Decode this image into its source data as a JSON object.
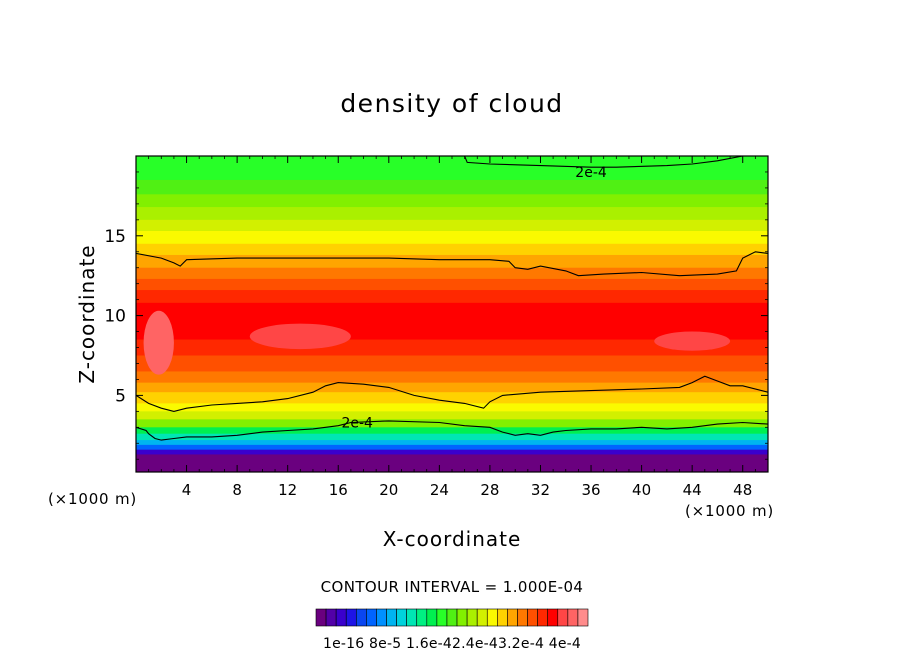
{
  "chart_data": {
    "type": "heatmap",
    "title": "density of cloud",
    "xlabel": "X-coordinate",
    "ylabel": "Z-coordinate",
    "x_unit_left": "(×1000 m)",
    "x_unit_right": "(×1000 m)",
    "xlim": [
      0,
      50
    ],
    "ylim": [
      0.2,
      20
    ],
    "x_ticks": [
      4,
      8,
      12,
      16,
      20,
      24,
      28,
      32,
      36,
      40,
      44,
      48
    ],
    "x_tick_labels": [
      "4",
      "8",
      "12",
      "16",
      "20",
      "24",
      "28",
      "32",
      "36",
      "40",
      "44",
      "48"
    ],
    "y_ticks": [
      5,
      10,
      15
    ],
    "y_tick_labels": [
      "5",
      "10",
      "15"
    ],
    "contour_interval_text": "CONTOUR INTERVAL = 1.000E-04",
    "contour_label": "2e-4",
    "contour_labels": [
      {
        "text": "2e-4",
        "x": 36,
        "z": 19.0
      },
      {
        "text": "2e-4",
        "x": 17.5,
        "z": 3.3
      }
    ],
    "colorbar": {
      "colors": [
        "#6a007f",
        "#5200a8",
        "#3a00cc",
        "#1e14e6",
        "#0a46f0",
        "#0064ff",
        "#0090ff",
        "#00b4f0",
        "#00d2dc",
        "#00e6b4",
        "#00f082",
        "#00f050",
        "#28ff28",
        "#50f014",
        "#82f000",
        "#aaf000",
        "#d2f000",
        "#fafa00",
        "#ffd200",
        "#ffa500",
        "#ff7800",
        "#ff5000",
        "#ff2800",
        "#ff0000",
        "#ff4646",
        "#ff6464",
        "#ff8c8c"
      ],
      "tick_labels": [
        "1e-16",
        "8e-5",
        "1.6e-4",
        "2.4e-4",
        "3.2e-4",
        "4e-4"
      ],
      "label_text": "1e-16 8e-5 1.6e-42.4e-43.2e-4 4e-4"
    },
    "bands": [
      {
        "color": "#6a007f",
        "z_top": 1.3
      },
      {
        "color": "#3a00cc",
        "z_top": 1.6
      },
      {
        "color": "#0064ff",
        "z_top": 1.9
      },
      {
        "color": "#00b4f0",
        "z_top": 2.2
      },
      {
        "color": "#00e6b4",
        "z_top": 2.6
      },
      {
        "color": "#00f050",
        "z_top": 3.0
      },
      {
        "color": "#82f000",
        "z_top": 3.5
      },
      {
        "color": "#d2f000",
        "z_top": 4.0
      },
      {
        "color": "#fafa00",
        "z_top": 4.5
      },
      {
        "color": "#ffd200",
        "z_top": 5.2
      },
      {
        "color": "#ffa500",
        "z_top": 5.8
      },
      {
        "color": "#ff7800",
        "z_top": 6.5
      },
      {
        "color": "#ff5000",
        "z_top": 7.5
      },
      {
        "color": "#ff2800",
        "z_top": 8.5
      },
      {
        "color": "#ff0000",
        "z_top": 10.8
      },
      {
        "color": "#ff2800",
        "z_top": 11.6
      },
      {
        "color": "#ff5000",
        "z_top": 12.3
      },
      {
        "color": "#ff7800",
        "z_top": 13.0
      },
      {
        "color": "#ffa500",
        "z_top": 13.8
      },
      {
        "color": "#ffd200",
        "z_top": 14.5
      },
      {
        "color": "#fafa00",
        "z_top": 15.3
      },
      {
        "color": "#d2f000",
        "z_top": 16.0
      },
      {
        "color": "#aaf000",
        "z_top": 16.8
      },
      {
        "color": "#82f000",
        "z_top": 17.6
      },
      {
        "color": "#50f014",
        "z_top": 18.5
      },
      {
        "color": "#28ff28",
        "z_top": 20.0
      }
    ],
    "highlights": [
      {
        "color": "#ff6464",
        "x": 1.8,
        "z": 8.3,
        "rx": 1.2,
        "rz": 2.0
      },
      {
        "color": "#ff4646",
        "x": 13,
        "z": 8.7,
        "rx": 4,
        "rz": 0.8
      },
      {
        "color": "#ff4646",
        "x": 44,
        "z": 8.4,
        "rx": 3,
        "rz": 0.6
      }
    ],
    "contours": [
      {
        "label": "upper",
        "points": [
          [
            0,
            13.9
          ],
          [
            2,
            13.6
          ],
          [
            3,
            13.3
          ],
          [
            3.5,
            13.1
          ],
          [
            4,
            13.5
          ],
          [
            8,
            13.6
          ],
          [
            12,
            13.6
          ],
          [
            16,
            13.6
          ],
          [
            20,
            13.6
          ],
          [
            24,
            13.5
          ],
          [
            28,
            13.5
          ],
          [
            29.5,
            13.4
          ],
          [
            30,
            13.0
          ],
          [
            31,
            12.9
          ],
          [
            32,
            13.1
          ],
          [
            34,
            12.8
          ],
          [
            35,
            12.5
          ],
          [
            37,
            12.6
          ],
          [
            40,
            12.7
          ],
          [
            43,
            12.5
          ],
          [
            46,
            12.6
          ],
          [
            47.5,
            12.8
          ],
          [
            48,
            13.6
          ],
          [
            49,
            14.0
          ],
          [
            50,
            13.9
          ]
        ]
      },
      {
        "label": "middle",
        "points": [
          [
            0,
            5.0
          ],
          [
            1,
            4.5
          ],
          [
            2,
            4.2
          ],
          [
            3,
            4.0
          ],
          [
            4,
            4.2
          ],
          [
            6,
            4.4
          ],
          [
            8,
            4.5
          ],
          [
            10,
            4.6
          ],
          [
            12,
            4.8
          ],
          [
            14,
            5.2
          ],
          [
            15,
            5.6
          ],
          [
            16,
            5.8
          ],
          [
            18,
            5.7
          ],
          [
            20,
            5.5
          ],
          [
            22,
            5.0
          ],
          [
            24,
            4.7
          ],
          [
            26,
            4.5
          ],
          [
            27.5,
            4.2
          ],
          [
            28,
            4.6
          ],
          [
            29,
            5.0
          ],
          [
            32,
            5.2
          ],
          [
            36,
            5.3
          ],
          [
            40,
            5.4
          ],
          [
            43,
            5.5
          ],
          [
            44,
            5.8
          ],
          [
            45,
            6.2
          ],
          [
            46,
            5.9
          ],
          [
            47,
            5.6
          ],
          [
            48,
            5.6
          ],
          [
            50,
            5.2
          ]
        ]
      },
      {
        "label": "2e-4-lower",
        "points": [
          [
            0,
            3.0
          ],
          [
            0.8,
            2.8
          ],
          [
            1,
            2.6
          ],
          [
            1.5,
            2.3
          ],
          [
            2,
            2.2
          ],
          [
            3,
            2.3
          ],
          [
            4,
            2.4
          ],
          [
            6,
            2.4
          ],
          [
            8,
            2.5
          ],
          [
            10,
            2.7
          ],
          [
            12,
            2.8
          ],
          [
            14,
            2.9
          ],
          [
            16,
            3.1
          ],
          [
            17,
            3.3
          ],
          [
            20,
            3.4
          ],
          [
            24,
            3.3
          ],
          [
            26,
            3.1
          ],
          [
            28,
            3.0
          ],
          [
            29,
            2.7
          ],
          [
            30,
            2.5
          ],
          [
            31,
            2.6
          ],
          [
            32,
            2.5
          ],
          [
            33,
            2.7
          ],
          [
            34,
            2.8
          ],
          [
            36,
            2.9
          ],
          [
            38,
            2.9
          ],
          [
            40,
            3.0
          ],
          [
            42,
            2.9
          ],
          [
            44,
            3.0
          ],
          [
            46,
            3.2
          ],
          [
            48,
            3.3
          ],
          [
            50,
            3.2
          ]
        ]
      },
      {
        "label": "2e-4-top",
        "points": [
          [
            26,
            20.0
          ],
          [
            26.2,
            19.6
          ],
          [
            28,
            19.5
          ],
          [
            32,
            19.4
          ],
          [
            36,
            19.3
          ],
          [
            38,
            19.3
          ],
          [
            42,
            19.4
          ],
          [
            44,
            19.5
          ],
          [
            46,
            19.7
          ],
          [
            48,
            20.0
          ]
        ]
      }
    ]
  }
}
